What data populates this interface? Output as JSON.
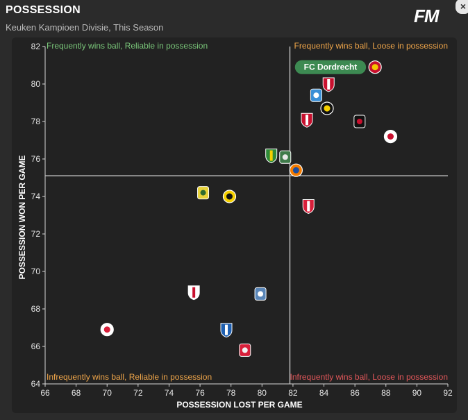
{
  "header": {
    "title": "POSSESSION",
    "subtitle": "Keuken Kampioen Divisie, This Season",
    "logo": "FM",
    "close_glyph": "×"
  },
  "chart_data": {
    "type": "scatter",
    "title": "POSSESSION",
    "subtitle": "Keuken Kampioen Divisie, This Season",
    "xlabel": "POSSESSION LOST PER GAME",
    "ylabel": "POSSESSION WON PER GAME",
    "xlim": [
      66,
      92
    ],
    "ylim": [
      64,
      82
    ],
    "xticks": [
      66,
      68,
      70,
      72,
      74,
      76,
      78,
      80,
      82,
      84,
      86,
      88,
      90,
      92
    ],
    "yticks": [
      64,
      66,
      68,
      70,
      72,
      74,
      76,
      78,
      80,
      82
    ],
    "reference_lines": {
      "x": 81.8,
      "y": 75.1
    },
    "quadrant_labels": {
      "top_left": "Frequently wins ball, Reliable in possession",
      "top_right": "Frequently wins ball, Loose in possession",
      "bottom_left": "Infrequently wins ball, Reliable in possession",
      "bottom_right": "Infrequently wins ball, Loose in possession"
    },
    "quadrant_colors": {
      "top_left": "#7ac77a",
      "top_right": "#f0a64a",
      "bottom_left": "#f0a64a",
      "bottom_right": "#e2575a"
    },
    "highlight_label": "FC Dordrecht",
    "highlight_color": "#3d8a52",
    "points": [
      {
        "x": 87.3,
        "y": 80.9,
        "c1": "#c8102e",
        "c2": "#f5c400",
        "highlight": true
      },
      {
        "x": 84.3,
        "y": 80.0,
        "c1": "#c8102e",
        "c2": "#ffffff"
      },
      {
        "x": 83.5,
        "y": 79.4,
        "c1": "#3a8fd6",
        "c2": "#ffffff"
      },
      {
        "x": 84.2,
        "y": 78.7,
        "c1": "#111111",
        "c2": "#f5d000"
      },
      {
        "x": 82.9,
        "y": 78.1,
        "c1": "#c8102e",
        "c2": "#ffffff"
      },
      {
        "x": 86.3,
        "y": 78.0,
        "c1": "#111111",
        "c2": "#c8102e"
      },
      {
        "x": 88.3,
        "y": 77.2,
        "c1": "#ffffff",
        "c2": "#c8102e"
      },
      {
        "x": 80.6,
        "y": 76.2,
        "c1": "#2f8a3a",
        "c2": "#f5d000"
      },
      {
        "x": 81.5,
        "y": 76.1,
        "c1": "#3f7a4a",
        "c2": "#e8e8e8"
      },
      {
        "x": 82.2,
        "y": 75.4,
        "c1": "#f57c00",
        "c2": "#1e4fa0"
      },
      {
        "x": 83.0,
        "y": 73.5,
        "c1": "#d71f3a",
        "c2": "#ffffff"
      },
      {
        "x": 76.2,
        "y": 74.2,
        "c1": "#e8d23a",
        "c2": "#2f6b2f"
      },
      {
        "x": 77.9,
        "y": 74.0,
        "c1": "#f5d000",
        "c2": "#111111"
      },
      {
        "x": 75.6,
        "y": 68.9,
        "c1": "#ffffff",
        "c2": "#c8102e"
      },
      {
        "x": 79.9,
        "y": 68.8,
        "c1": "#5a86b8",
        "c2": "#ffffff"
      },
      {
        "x": 70.0,
        "y": 66.9,
        "c1": "#ffffff",
        "c2": "#d71f3a"
      },
      {
        "x": 77.7,
        "y": 66.9,
        "c1": "#1e5fb0",
        "c2": "#ffffff"
      },
      {
        "x": 78.9,
        "y": 65.8,
        "c1": "#d71f3a",
        "c2": "#f2f2f2"
      }
    ]
  }
}
